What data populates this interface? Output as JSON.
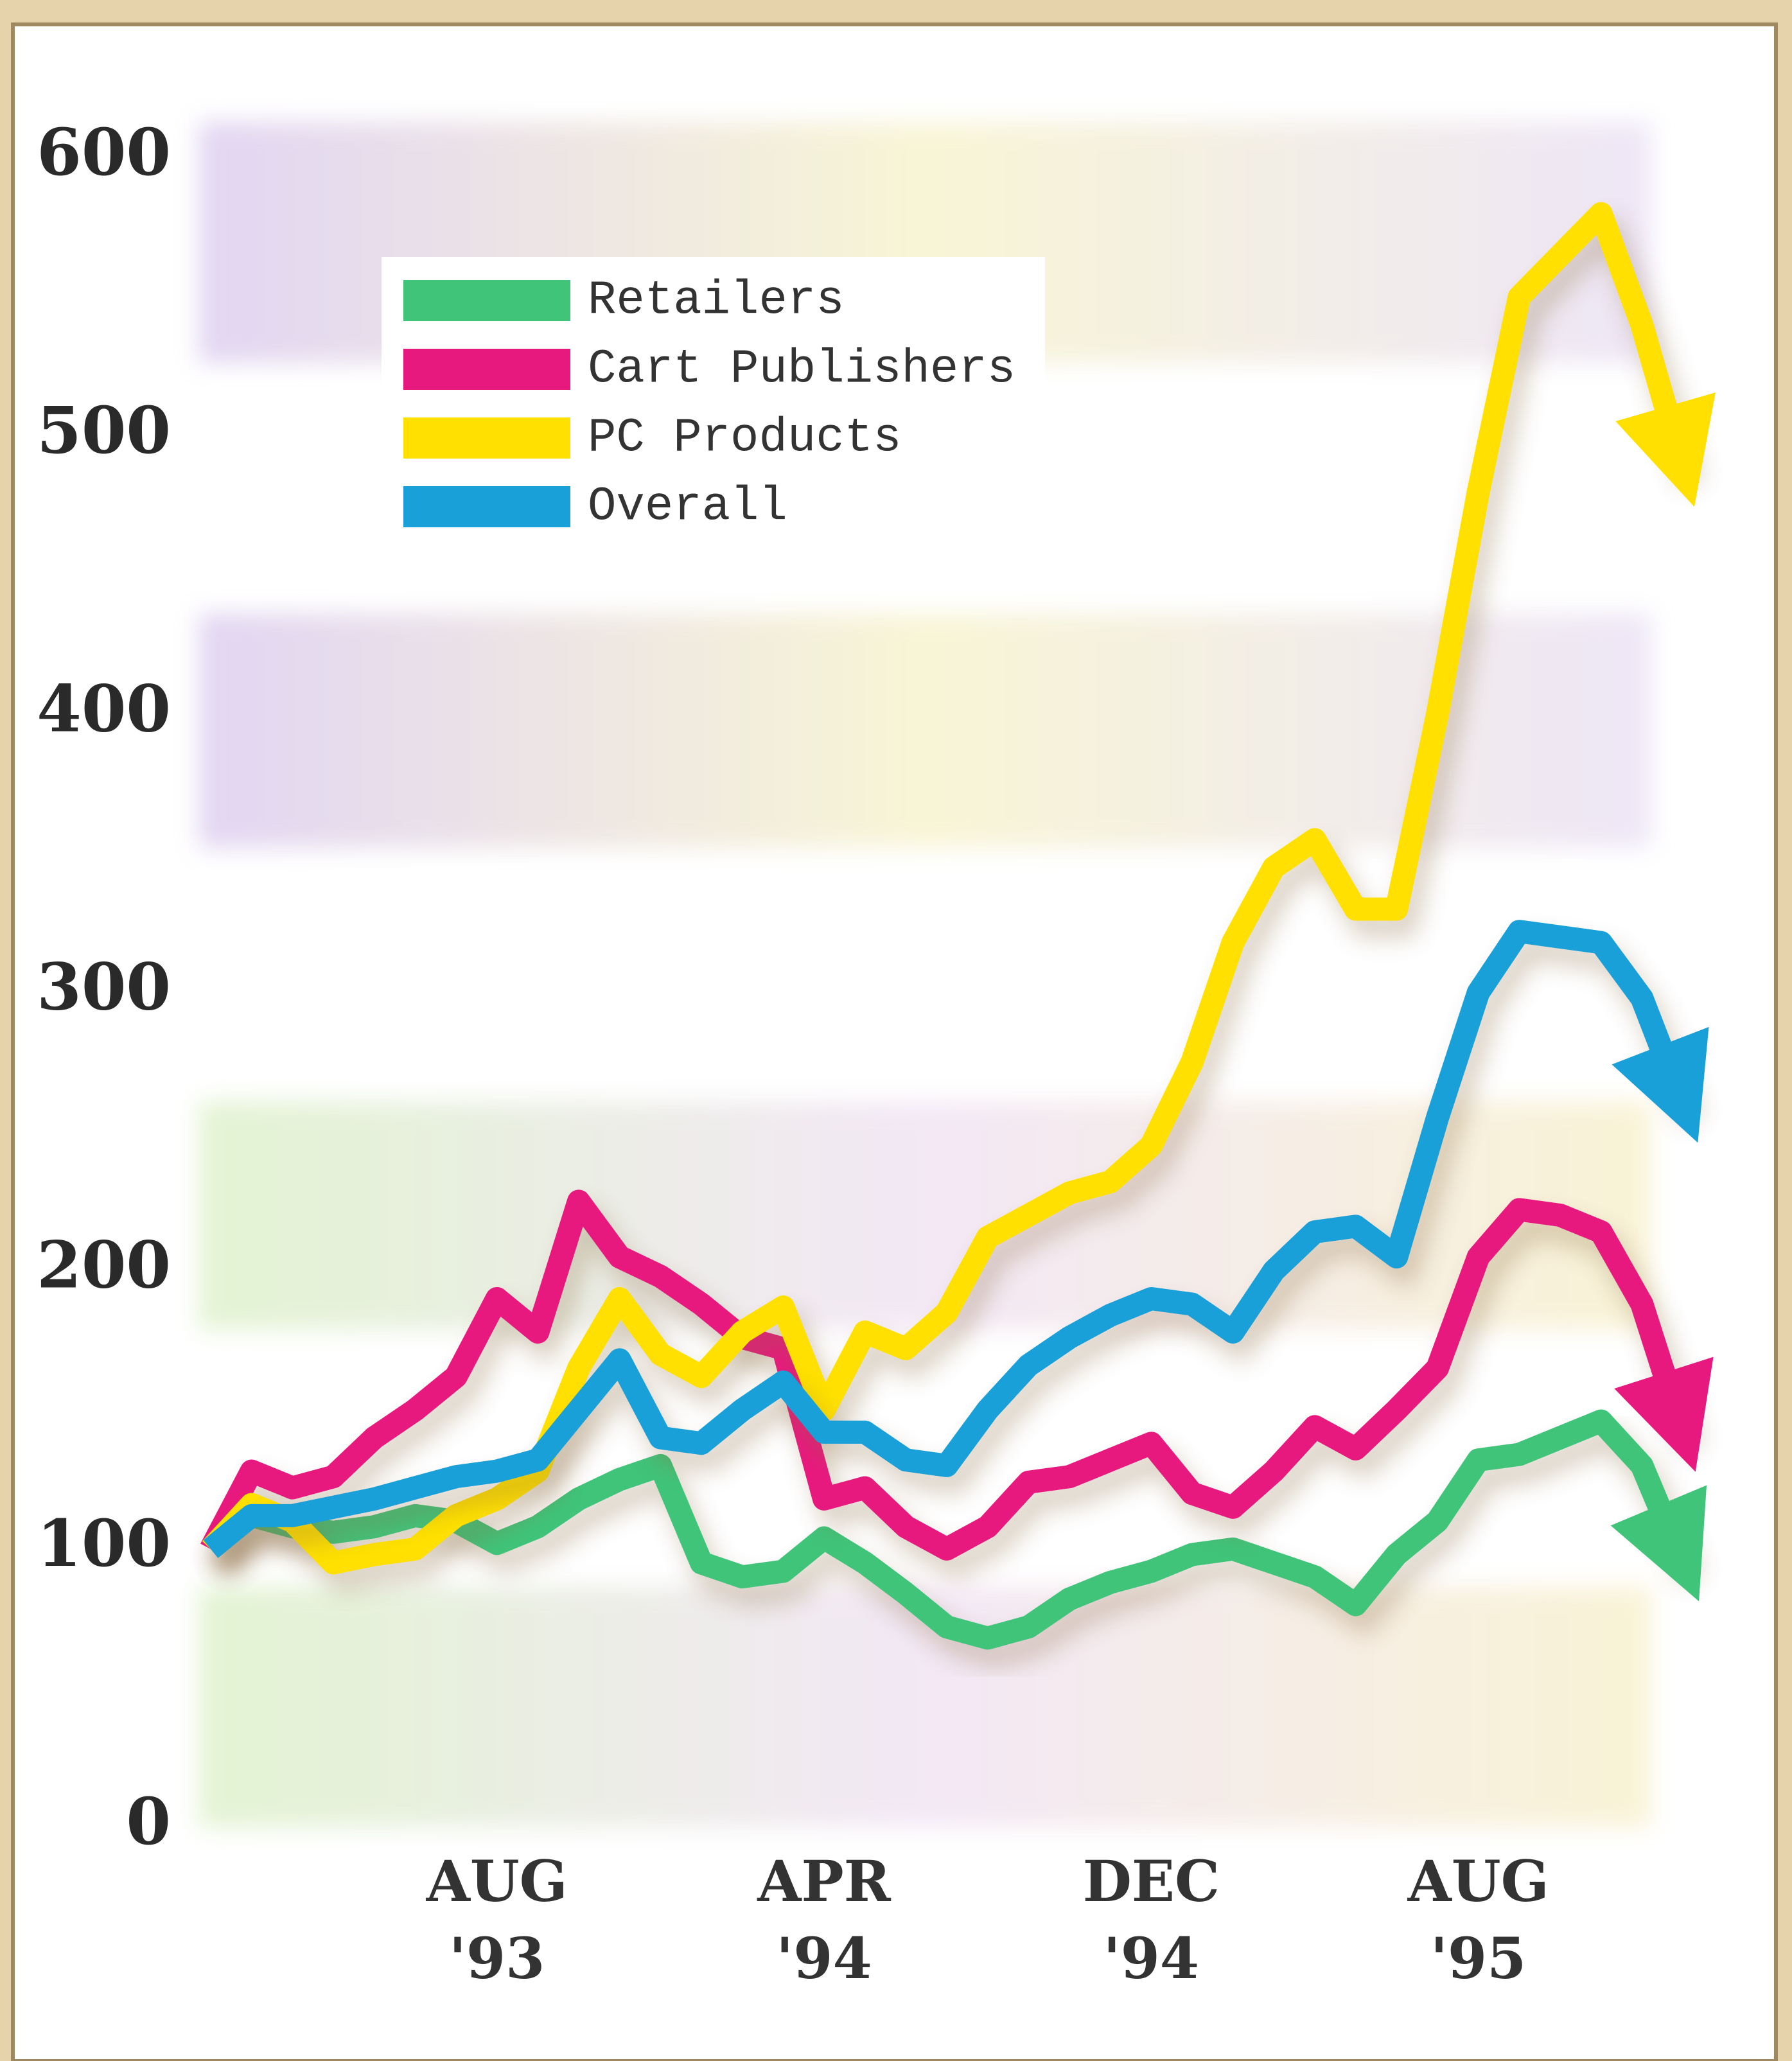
{
  "chart_data": {
    "type": "line",
    "categories": [
      null,
      null,
      null,
      null,
      null,
      null,
      null,
      "AUG '93",
      null,
      null,
      null,
      null,
      null,
      null,
      null,
      "APR '94",
      null,
      null,
      null,
      null,
      null,
      null,
      null,
      "DEC '94",
      null,
      null,
      null,
      null,
      null,
      null,
      null,
      "AUG '95",
      null,
      null,
      null,
      null,
      null
    ],
    "series": [
      {
        "name": "Retailers",
        "color": "#3fc47a",
        "values": [
          100,
          112,
          108,
          106,
          108,
          112,
          110,
          102,
          108,
          118,
          125,
          130,
          95,
          90,
          92,
          104,
          95,
          84,
          72,
          68,
          72,
          82,
          88,
          92,
          98,
          100,
          95,
          90,
          80,
          98,
          110,
          132,
          134,
          140,
          146,
          130,
          95
        ]
      },
      {
        "name": "Cart Publishers",
        "color": "#e8197e",
        "values": [
          100,
          128,
          122,
          126,
          140,
          150,
          162,
          190,
          178,
          225,
          205,
          198,
          188,
          176,
          172,
          118,
          122,
          108,
          100,
          108,
          124,
          126,
          132,
          138,
          120,
          115,
          128,
          144,
          136,
          150,
          165,
          205,
          222,
          220,
          214,
          188,
          142
        ]
      },
      {
        "name": "PC Products",
        "color": "#ffe000",
        "values": [
          100,
          116,
          110,
          95,
          98,
          100,
          112,
          118,
          128,
          165,
          190,
          170,
          162,
          178,
          187,
          150,
          178,
          172,
          185,
          212,
          220,
          228,
          232,
          245,
          275,
          318,
          345,
          355,
          330,
          330,
          400,
          480,
          550,
          565,
          580,
          540,
          489
        ]
      },
      {
        "name": "Overall",
        "color": "#1aa0d8",
        "values": [
          100,
          112,
          112,
          115,
          118,
          122,
          126,
          128,
          132,
          150,
          168,
          140,
          138,
          150,
          160,
          142,
          142,
          132,
          130,
          150,
          166,
          176,
          184,
          190,
          188,
          178,
          200,
          214,
          216,
          205,
          255,
          300,
          322,
          320,
          318,
          298,
          260
        ]
      }
    ],
    "ylim": [
      0,
      600
    ],
    "yticks": [
      0,
      100,
      200,
      300,
      400,
      500,
      600
    ]
  }
}
